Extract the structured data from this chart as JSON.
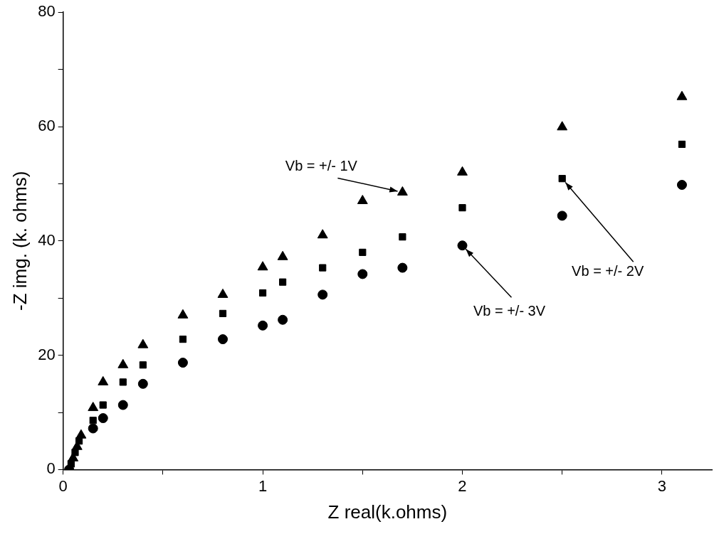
{
  "chart_data": {
    "type": "scatter",
    "xlabel": "Z real(k.ohms)",
    "ylabel": "-Z img. (k. ohms)",
    "xlim": [
      0,
      3.25
    ],
    "ylim": [
      0,
      80
    ],
    "xticks": [
      0,
      {
        "value": 0.5,
        "label": null
      },
      1,
      {
        "value": 1.5,
        "label": null
      },
      2,
      {
        "value": 2.5,
        "label": null
      },
      3
    ],
    "yticks": [
      0,
      {
        "value": 10,
        "label": null
      },
      20,
      {
        "value": 30,
        "label": null
      },
      40,
      {
        "value": 50,
        "label": null
      },
      60,
      {
        "value": 70,
        "label": null
      },
      80
    ],
    "grid": false,
    "legend": false,
    "series": [
      {
        "color": "#000000",
        "marker": "triangle",
        "x": [
          0.05,
          0.07,
          0.09,
          0.15,
          0.2,
          0.3,
          0.4,
          0.6,
          0.8,
          1.0,
          1.1,
          1.3,
          1.5,
          1.7,
          2.0,
          2.5,
          3.1
        ],
        "values": [
          2,
          4,
          6,
          10.8,
          15.3,
          18.3,
          21.8,
          27,
          30.6,
          35.4,
          37.2,
          41,
          47,
          48.5,
          52,
          59.9,
          65.2
        ]
      },
      {
        "color": "#000000",
        "marker": "square",
        "x": [
          0.04,
          0.06,
          0.08,
          0.15,
          0.2,
          0.3,
          0.4,
          0.6,
          0.8,
          1.0,
          1.1,
          1.3,
          1.5,
          1.7,
          2.0,
          2.5,
          3.1
        ],
        "values": [
          1,
          3,
          5,
          8.6,
          11.3,
          15.3,
          18.3,
          22.8,
          27.3,
          30.9,
          32.8,
          35.3,
          38,
          40.7,
          45.8,
          50.9,
          56.9
        ]
      },
      {
        "color": "#000000",
        "marker": "circle",
        "x": [
          0.03,
          0.05,
          0.07,
          0.08,
          0.15,
          0.2,
          0.3,
          0.4,
          0.6,
          0.8,
          1.0,
          1.1,
          1.3,
          1.5,
          1.7,
          2.0,
          2.5,
          3.1
        ],
        "values": [
          0,
          null,
          null,
          null,
          7.2,
          9,
          11.3,
          15,
          18.7,
          22.8,
          25.2,
          26.2,
          30.6,
          34.2,
          35.3,
          39.2,
          44.4,
          49.8
        ]
      }
    ],
    "annotations": [
      {
        "text": "Vb = +/- 1V",
        "x": 1.7,
        "y": 48.5
      },
      {
        "text": "Vb = +/- 2V",
        "x": 2.5,
        "y": 50.9
      },
      {
        "text": "Vb = +/- 3V",
        "x": 2.0,
        "y": 39.2
      }
    ]
  }
}
